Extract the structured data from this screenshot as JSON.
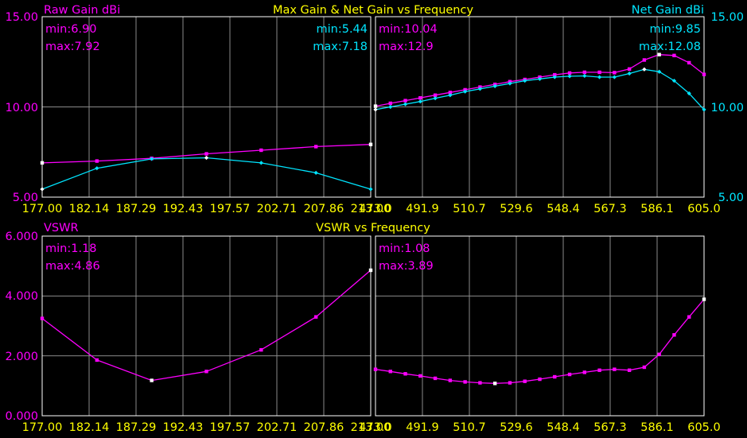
{
  "colors": {
    "magenta": "#ff00ff",
    "cyan": "#00e5ff",
    "yellow": "#ffff00",
    "grid": "#8a8a8a",
    "background": "#000000"
  },
  "top": {
    "title": "Max Gain & Net Gain vs Frequency",
    "left_axis_label": "Raw Gain dBi",
    "right_axis_label": "Net Gain dBi",
    "y_ticks_left": [
      "15.00",
      "10.00",
      "5.00"
    ],
    "y_ticks_right": [
      "15.00",
      "10.00",
      "5.00"
    ]
  },
  "bottom": {
    "title": "VSWR vs Frequency",
    "left_axis_label": "VSWR",
    "y_ticks_left": [
      "6.000",
      "4.000",
      "2.000",
      "0.000"
    ]
  },
  "chart_data": [
    {
      "id": "gain_band1",
      "type": "line",
      "x_ticks": [
        "177.00",
        "182.14",
        "187.29",
        "192.43",
        "197.57",
        "202.71",
        "207.86",
        "213.00"
      ],
      "xlim": [
        177.0,
        213.0
      ],
      "ylim": [
        5.0,
        15.0
      ],
      "grid": true,
      "stats": {
        "raw_min": "min:6.90",
        "raw_max": "max:7.92",
        "net_min": "min:5.44",
        "net_max": "max:7.18"
      },
      "series": [
        {
          "name": "Raw Gain dBi",
          "color": "#ff00ff",
          "x": [
            177.0,
            183.0,
            189.0,
            195.0,
            201.0,
            207.0,
            213.0
          ],
          "y": [
            6.9,
            7.0,
            7.15,
            7.4,
            7.6,
            7.8,
            7.92
          ]
        },
        {
          "name": "Net Gain dBi",
          "color": "#00e5ff",
          "x": [
            177.0,
            183.0,
            189.0,
            195.0,
            201.0,
            207.0,
            213.0
          ],
          "y": [
            5.44,
            6.6,
            7.12,
            7.18,
            6.9,
            6.35,
            5.44
          ]
        }
      ]
    },
    {
      "id": "gain_band2",
      "type": "line",
      "x_ticks": [
        "473.0",
        "491.9",
        "510.7",
        "529.6",
        "548.4",
        "567.3",
        "586.1",
        "605.0"
      ],
      "xlim": [
        473.0,
        605.0
      ],
      "ylim": [
        5.0,
        15.0
      ],
      "grid": true,
      "stats": {
        "raw_min": "min:10.04",
        "raw_max": "max:12.9",
        "net_min": "min:9.85",
        "net_max": "max:12.08"
      },
      "series": [
        {
          "name": "Raw Gain dBi",
          "color": "#ff00ff",
          "x": [
            473,
            479,
            485,
            491,
            497,
            503,
            509,
            515,
            521,
            527,
            533,
            539,
            545,
            551,
            557,
            563,
            569,
            575,
            581,
            587,
            593,
            599,
            605
          ],
          "y": [
            10.04,
            10.2,
            10.35,
            10.5,
            10.65,
            10.8,
            10.95,
            11.1,
            11.25,
            11.4,
            11.52,
            11.65,
            11.78,
            11.88,
            11.92,
            11.92,
            11.9,
            12.1,
            12.6,
            12.9,
            12.85,
            12.45,
            11.8
          ]
        },
        {
          "name": "Net Gain dBi",
          "color": "#00e5ff",
          "x": [
            473,
            479,
            485,
            491,
            497,
            503,
            509,
            515,
            521,
            527,
            533,
            539,
            545,
            551,
            557,
            563,
            569,
            575,
            581,
            587,
            593,
            599,
            605
          ],
          "y": [
            9.85,
            10.0,
            10.15,
            10.3,
            10.48,
            10.65,
            10.85,
            11.0,
            11.15,
            11.3,
            11.45,
            11.55,
            11.65,
            11.7,
            11.72,
            11.65,
            11.65,
            11.85,
            12.08,
            11.95,
            11.45,
            10.75,
            9.85
          ]
        }
      ]
    },
    {
      "id": "vswr_band1",
      "type": "line",
      "x_ticks": [
        "177.00",
        "182.14",
        "187.29",
        "192.43",
        "197.57",
        "202.71",
        "207.86",
        "213.00"
      ],
      "xlim": [
        177.0,
        213.0
      ],
      "ylim": [
        0.0,
        6.0
      ],
      "grid": true,
      "stats": {
        "min": "min:1.18",
        "max": "max:4.86"
      },
      "series": [
        {
          "name": "VSWR",
          "color": "#ff00ff",
          "x": [
            177.0,
            183.0,
            189.0,
            195.0,
            201.0,
            207.0,
            213.0
          ],
          "y": [
            3.25,
            1.86,
            1.18,
            1.48,
            2.2,
            3.3,
            4.86
          ]
        }
      ]
    },
    {
      "id": "vswr_band2",
      "type": "line",
      "x_ticks": [
        "473.0",
        "491.9",
        "510.7",
        "529.6",
        "548.4",
        "567.3",
        "586.1",
        "605.0"
      ],
      "xlim": [
        473.0,
        605.0
      ],
      "ylim": [
        0.0,
        6.0
      ],
      "grid": true,
      "stats": {
        "min": "min:1.08",
        "max": "max:3.89"
      },
      "series": [
        {
          "name": "VSWR",
          "color": "#ff00ff",
          "x": [
            473,
            479,
            485,
            491,
            497,
            503,
            509,
            515,
            521,
            527,
            533,
            539,
            545,
            551,
            557,
            563,
            569,
            575,
            581,
            587,
            593,
            599,
            605
          ],
          "y": [
            1.55,
            1.48,
            1.4,
            1.33,
            1.25,
            1.18,
            1.13,
            1.1,
            1.08,
            1.1,
            1.15,
            1.22,
            1.3,
            1.38,
            1.45,
            1.52,
            1.55,
            1.52,
            1.62,
            2.05,
            2.7,
            3.3,
            3.89
          ]
        }
      ]
    }
  ]
}
